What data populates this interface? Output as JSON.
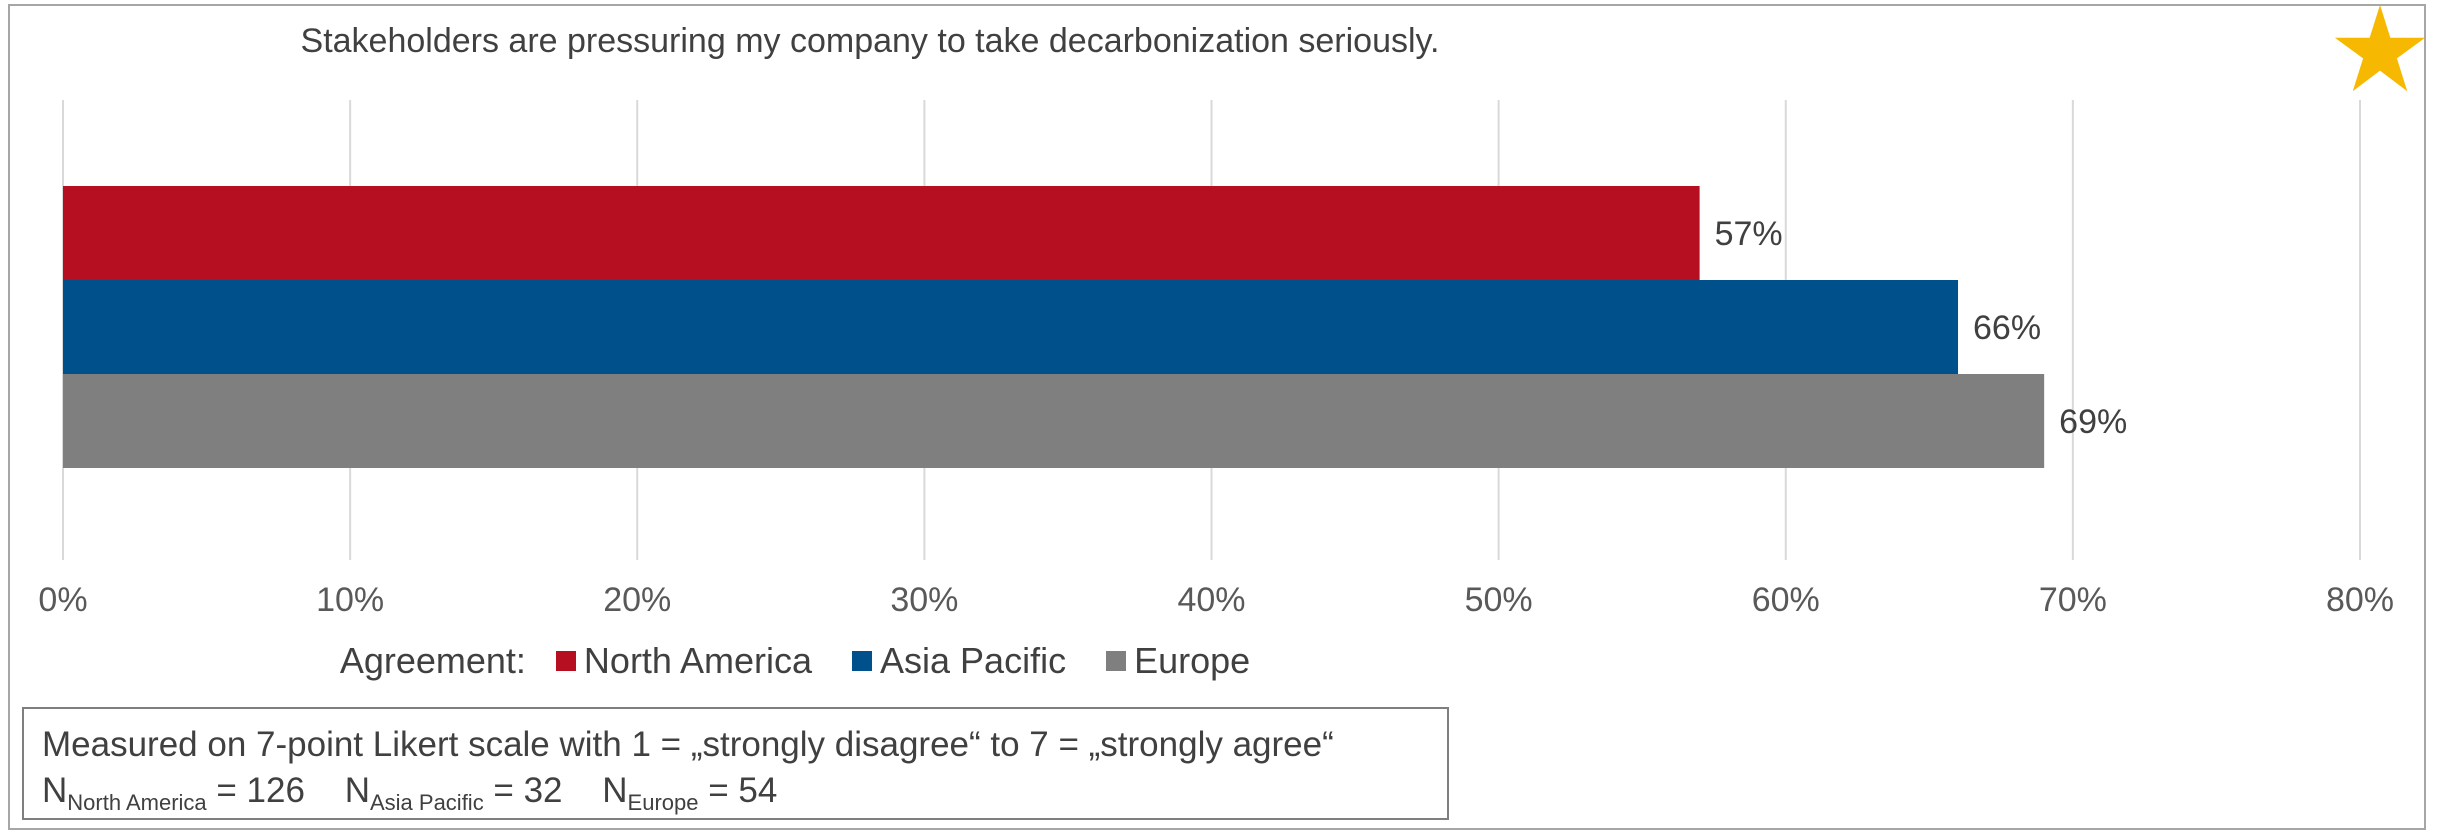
{
  "chart_data": {
    "type": "bar",
    "orientation": "horizontal",
    "title": "Stakeholders are pressuring my company to take decarbonization seriously.",
    "xlabel": "",
    "ylabel": "",
    "xlim": [
      0,
      80
    ],
    "x_ticks": [
      "0%",
      "10%",
      "20%",
      "30%",
      "40%",
      "50%",
      "60%",
      "70%",
      "80%"
    ],
    "grid": "vertical",
    "legend_title": "Agreement:",
    "legend_position": "bottom",
    "series": [
      {
        "name": "North America",
        "value": 57,
        "label": "57%",
        "color": "#b70f22"
      },
      {
        "name": "Asia Pacific",
        "value": 66,
        "label": "66%",
        "color": "#00508c"
      },
      {
        "name": "Europe",
        "value": 69,
        "label": "69%",
        "color": "#7f7f7f"
      }
    ]
  },
  "note": {
    "line1": "Measured on 7-point Likert scale with 1 = „strongly disagree“ to 7 = „strongly agree“",
    "groups": [
      {
        "n": "N",
        "sub": "North America",
        "value": " = 126"
      },
      {
        "n": "N",
        "sub": "Asia Pacific",
        "value": " = 32"
      },
      {
        "n": "N",
        "sub": "Europe",
        "value": " = 54"
      }
    ]
  },
  "icons": {
    "corner": "star-icon",
    "corner_color": "#f6b800"
  }
}
